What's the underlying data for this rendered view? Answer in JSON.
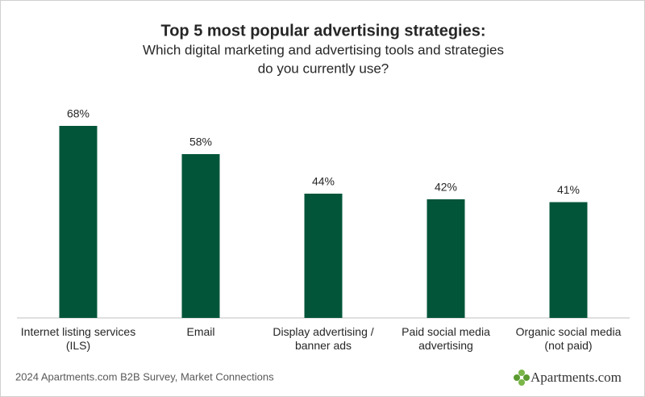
{
  "chart_data": {
    "type": "bar",
    "title": "Top 5 most popular advertising strategies:",
    "subtitle": [
      "Which digital marketing and advertising tools and strategies",
      "do you currently use?"
    ],
    "categories": [
      "Internet listing services (ILS)",
      "Email",
      "Display advertising / banner ads",
      "Paid social media advertising",
      "Organic social media (not paid)"
    ],
    "values": [
      68,
      58,
      44,
      42,
      41
    ],
    "value_labels": [
      "68%",
      "58%",
      "44%",
      "42%",
      "41%"
    ],
    "color": "#03553a",
    "source": "2024 Apartments.com B2B Survey, Market Connections",
    "logo": "Apartments.com"
  }
}
